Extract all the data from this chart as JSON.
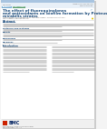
{
  "page_bg": "#f4f4f4",
  "paper_bg": "#ffffff",
  "top_band_color": "#e8f0f8",
  "top_strip_color": "#a8c4e0",
  "tag1_color": "#7bafd4",
  "tag2_color": "#5a9e6f",
  "title_color": "#1a4a7a",
  "section_color": "#1a4a7a",
  "author_color": "#666666",
  "text_color": "#888888",
  "body_color": "#aaaaaa",
  "divider_color": "#dddddd",
  "bmc_red": "#cc2200",
  "bmc_blue": "#002060",
  "footer_bg": "#f0f0f0",
  "yellow_dot": "#e8c800",
  "journal_color": "#666666",
  "abstract_bg": "#f8f8f8"
}
